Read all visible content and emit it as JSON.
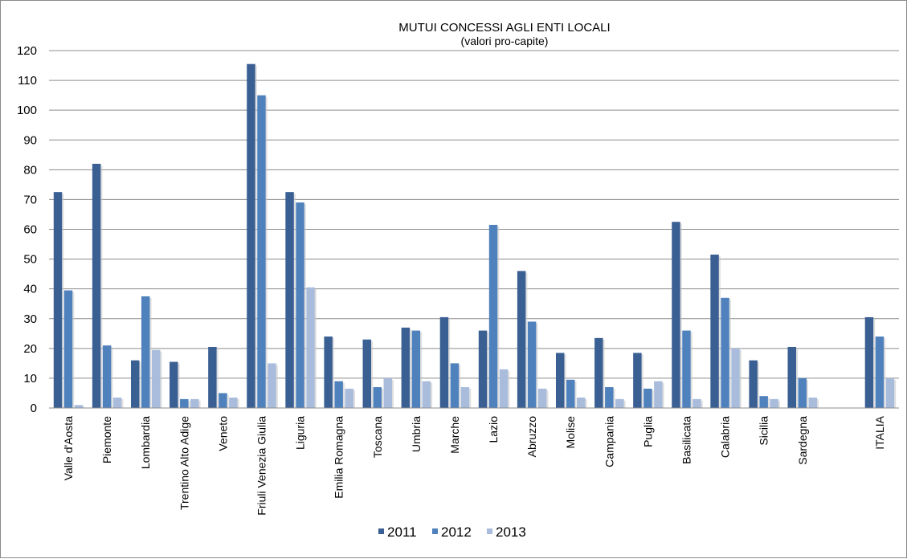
{
  "chart_data": {
    "type": "bar",
    "title": "MUTUI CONCESSI AGLI ENTI LOCALI",
    "subtitle": "(valori pro-capite)",
    "xlabel": "",
    "ylabel": "",
    "ylim": [
      0,
      120
    ],
    "yticks": [
      0,
      10,
      20,
      30,
      40,
      50,
      60,
      70,
      80,
      90,
      100,
      110,
      120
    ],
    "grid": true,
    "legend_position": "bottom",
    "categories": [
      "Valle d'Aosta",
      "Piemonte",
      "Lombardia",
      "Trentino Alto Adige",
      "Veneto",
      "Friuli Venezia Giulia",
      "Liguria",
      "Emilia Romagna",
      "Toscana",
      "Umbria",
      "Marche",
      "Lazio",
      "Abruzzo",
      "Molise",
      "Campania",
      "Puglia",
      "Basilicata",
      "Calabria",
      "Sicilia",
      "Sardegna",
      "",
      "ITALIA"
    ],
    "series": [
      {
        "name": "2011",
        "color": "#3a5f93",
        "values": [
          72.5,
          82,
          16,
          15.5,
          20.5,
          115.5,
          72.5,
          24,
          23,
          27,
          30.5,
          26,
          46,
          18.5,
          23.5,
          18.5,
          62.5,
          51.5,
          16,
          20.5,
          null,
          30.5
        ]
      },
      {
        "name": "2012",
        "color": "#4f81bd",
        "values": [
          39.5,
          21,
          37.5,
          3,
          5,
          105,
          69,
          9,
          7,
          26,
          15,
          61.5,
          29,
          9.5,
          7,
          6.5,
          26,
          37,
          4,
          10,
          null,
          24
        ]
      },
      {
        "name": "2013",
        "color": "#a9bcdc",
        "values": [
          1,
          3.5,
          19.5,
          3,
          3.5,
          15,
          40.5,
          6.5,
          10,
          9,
          7,
          13,
          6.5,
          3.5,
          3,
          9,
          3,
          20,
          3,
          3.5,
          null,
          10
        ]
      }
    ]
  }
}
